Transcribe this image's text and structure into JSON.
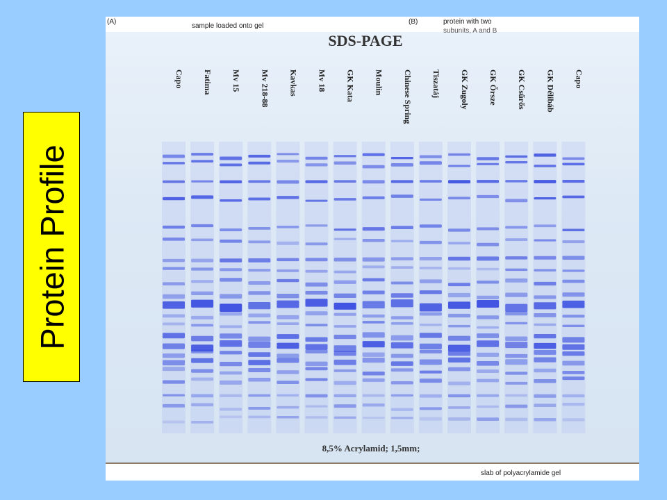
{
  "slide": {
    "title": "Protein Profile",
    "background_color": "#99ccff",
    "title_box_color": "#ffff00"
  },
  "figure": {
    "panel_a_label": "(A)",
    "panel_b_label": "(B)",
    "sample_label": "sample loaded onto gel",
    "protein_label": "protein with two",
    "subunit_label": "subunits, A and B",
    "gel_title": "SDS-PAGE",
    "caption": "8,5% Acrylamid; 1,5mm;",
    "slab_label": "slab of polyacrylamide gel",
    "band_color": "#3a4ee0",
    "lanes": [
      "Capo",
      "Fatima",
      "Mv 15",
      "Mv 218-88",
      "Kavkas",
      "Mv 18",
      "GK Kata",
      "Moulin",
      "Chinese Spring",
      "Tiszatáj",
      "GK Zugoly",
      "GK Őrsze",
      "GK Csűrős",
      "GK Délibáb",
      "Capo"
    ]
  }
}
